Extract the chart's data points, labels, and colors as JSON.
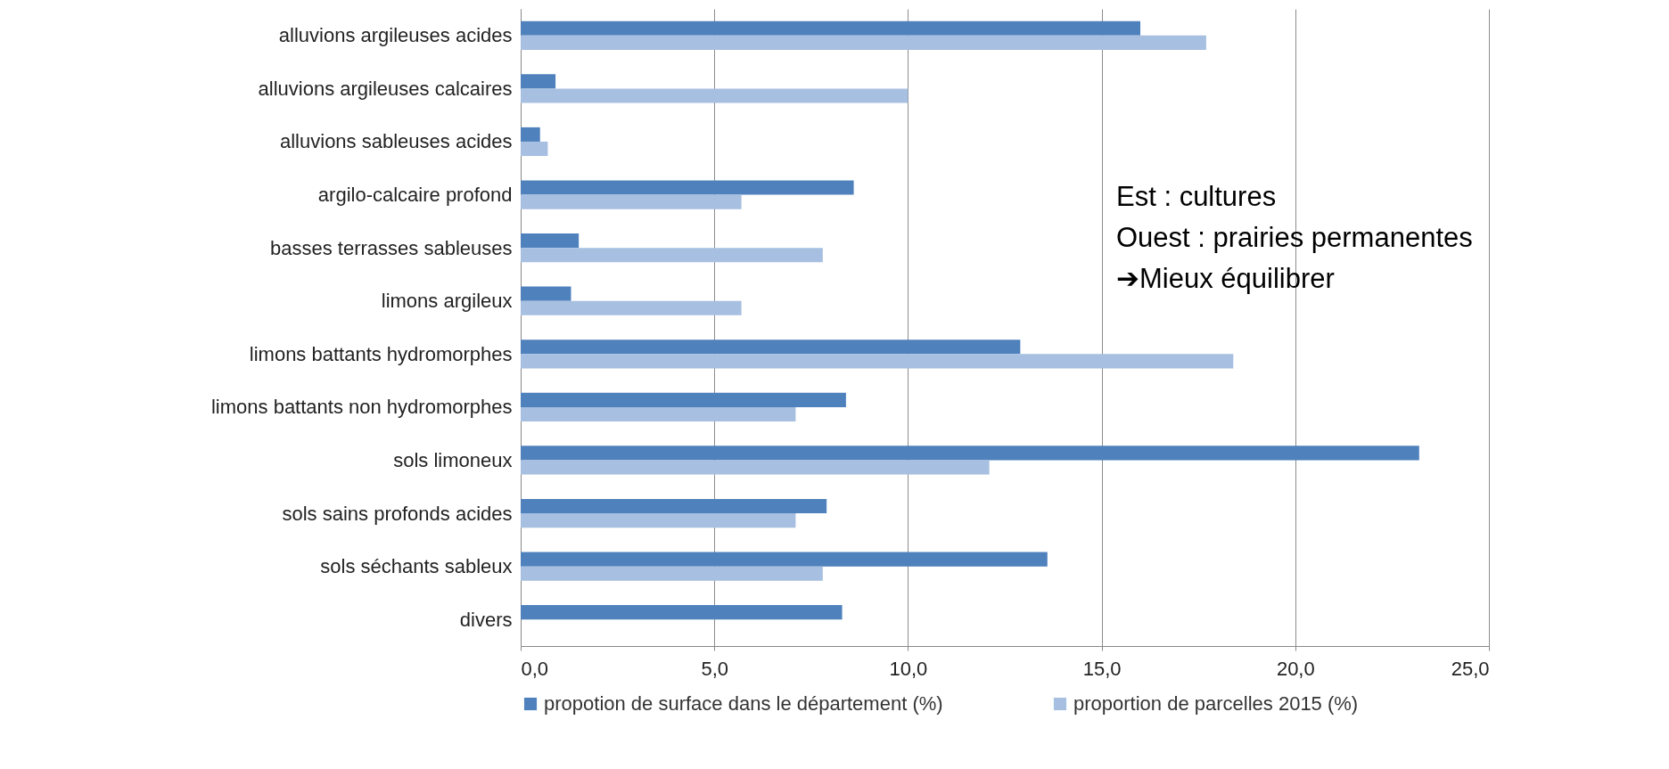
{
  "chart_data": {
    "type": "bar",
    "orientation": "horizontal",
    "categories": [
      "alluvions argileuses acides",
      "alluvions argileuses calcaires",
      "alluvions sableuses acides",
      "argilo-calcaire profond",
      "basses terrasses sableuses",
      "limons argileux",
      "limons battants hydromorphes",
      "limons battants non hydromorphes",
      "sols limoneux",
      "sols sains profonds acides",
      "sols séchants sableux",
      "divers"
    ],
    "series": [
      {
        "name": "propotion de surface dans le département (%)",
        "color": "#4f81bd",
        "values": [
          16.0,
          0.9,
          0.5,
          8.6,
          1.5,
          1.3,
          12.9,
          8.4,
          23.2,
          7.9,
          13.6,
          8.3
        ]
      },
      {
        "name": "proportion de parcelles 2015 (%)",
        "color": "#a7bfe0",
        "values": [
          17.7,
          10.0,
          0.7,
          5.7,
          7.8,
          5.7,
          18.4,
          7.1,
          12.1,
          7.1,
          7.8,
          null
        ]
      }
    ],
    "xlim": [
      0,
      25
    ],
    "xticks": [
      {
        "value": 0,
        "label": "0,0"
      },
      {
        "value": 5,
        "label": "5,0"
      },
      {
        "value": 10,
        "label": "10,0"
      },
      {
        "value": 15,
        "label": "15,0"
      },
      {
        "value": 20,
        "label": "20,0"
      },
      {
        "value": 25,
        "label": "25,0"
      }
    ],
    "grid": "x",
    "legend": "bottom",
    "annotations": [
      "Est : cultures",
      "Ouest : prairies permanentes",
      "➔Mieux équilibrer"
    ]
  }
}
